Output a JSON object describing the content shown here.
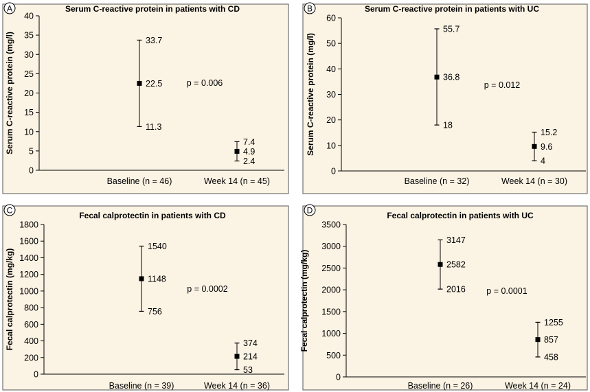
{
  "chart_data": [
    {
      "panel": "A",
      "type": "scatter",
      "title": "Serum C-reactive protein in patients with CD",
      "ylabel": "Serum C-reactive protein (mg/l)",
      "xlabel": "",
      "ylim": [
        0,
        40
      ],
      "yticks": [
        0,
        5,
        10,
        15,
        20,
        25,
        30,
        35,
        40
      ],
      "categories": [
        "Baseline (n = 46)",
        "Week 14 (n = 45)"
      ],
      "points": [
        {
          "center": 22.5,
          "low": 11.3,
          "high": 33.7,
          "center_label": "22.5",
          "low_label": "11.3",
          "high_label": "33.7"
        },
        {
          "center": 4.9,
          "low": 2.4,
          "high": 7.4,
          "center_label": "4.9",
          "low_label": "2.4",
          "high_label": "7.4"
        }
      ],
      "pvalue": "p = 0.006",
      "grid": false
    },
    {
      "panel": "B",
      "type": "scatter",
      "title": "Serum C-reactive protein in patients with UC",
      "ylabel": "Serum C-reactive protein (mg/l)",
      "xlabel": "",
      "ylim": [
        0,
        60
      ],
      "yticks": [
        0,
        10,
        20,
        30,
        40,
        50,
        60
      ],
      "categories": [
        "Baseline (n = 32)",
        "Week 14 (n = 30)"
      ],
      "points": [
        {
          "center": 36.8,
          "low": 18,
          "high": 55.7,
          "center_label": "36.8",
          "low_label": "18",
          "high_label": "55.7"
        },
        {
          "center": 9.6,
          "low": 4,
          "high": 15.2,
          "center_label": "9.6",
          "low_label": "4",
          "high_label": "15.2"
        }
      ],
      "pvalue": "p = 0.012",
      "grid": false
    },
    {
      "panel": "C",
      "type": "scatter",
      "title": "Fecal calprotectin in patients with CD",
      "ylabel": "Fecal calprotectin (mg/kg)",
      "xlabel": "",
      "ylim": [
        0,
        1800
      ],
      "yticks": [
        0,
        200,
        400,
        600,
        800,
        1000,
        1200,
        1400,
        1600,
        1800
      ],
      "categories": [
        "Baseline (n = 39)",
        "Week 14 (n = 36)"
      ],
      "points": [
        {
          "center": 1148,
          "low": 756,
          "high": 1540,
          "center_label": "1148",
          "low_label": "756",
          "high_label": "1540"
        },
        {
          "center": 214,
          "low": 53,
          "high": 374,
          "center_label": "214",
          "low_label": "53",
          "high_label": "374"
        }
      ],
      "pvalue": "p = 0.0002",
      "grid": false
    },
    {
      "panel": "D",
      "type": "scatter",
      "title": "Fecal calprotectin in patients with UC",
      "ylabel": "Fecal calprotectin (mg/kg)",
      "xlabel": "",
      "ylim": [
        0,
        3500
      ],
      "yticks": [
        0,
        500,
        1000,
        1500,
        2000,
        2500,
        3000,
        3500
      ],
      "categories": [
        "Baseline (n = 26)",
        "Week 14 (n = 24)"
      ],
      "points": [
        {
          "center": 2582,
          "low": 2016,
          "high": 3147,
          "center_label": "2582",
          "low_label": "2016",
          "high_label": "3147"
        },
        {
          "center": 857,
          "low": 458,
          "high": 1255,
          "center_label": "857",
          "low_label": "458",
          "high_label": "1255"
        }
      ],
      "pvalue": "p = 0.0001",
      "grid": false
    }
  ],
  "colors": {
    "panel_background": "#fbf3e4",
    "panel_border": "#555555",
    "axis": "#000000",
    "marker": "#000000",
    "text": "#000000"
  }
}
